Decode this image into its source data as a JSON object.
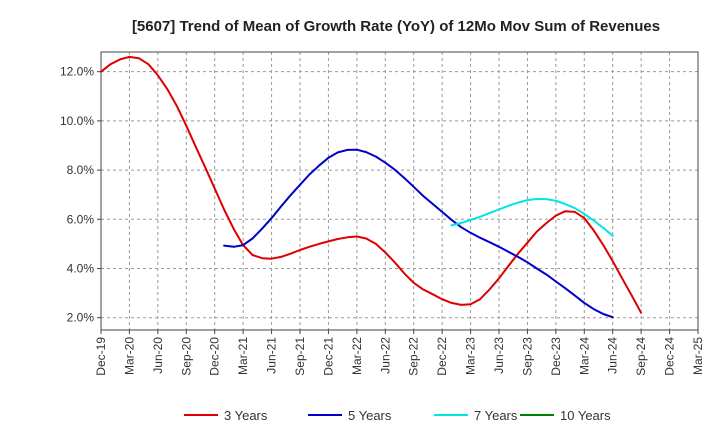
{
  "chart_data": {
    "type": "line",
    "title": "[5607]  Trend of Mean of Growth Rate (YoY) of 12Mo Mov Sum of Revenues",
    "xlabel": "",
    "ylabel": "",
    "x_tick_labels": [
      "Dec-19",
      "Mar-20",
      "Jun-20",
      "Sep-20",
      "Dec-20",
      "Mar-21",
      "Jun-21",
      "Sep-21",
      "Dec-21",
      "Mar-22",
      "Jun-22",
      "Sep-22",
      "Dec-22",
      "Mar-23",
      "Jun-23",
      "Sep-23",
      "Dec-23",
      "Mar-24",
      "Jun-24",
      "Sep-24",
      "Dec-24",
      "Mar-25"
    ],
    "y_tick_labels": [
      "2.0%",
      "4.0%",
      "6.0%",
      "8.0%",
      "10.0%",
      "12.0%"
    ],
    "y_ticks": [
      2,
      4,
      6,
      8,
      10,
      12
    ],
    "ylim": [
      1.5,
      12.8
    ],
    "x_count": 22,
    "grid": true,
    "legend_position": "bottom",
    "series": [
      {
        "name": "3 Years",
        "color": "#dd0000",
        "points": [
          [
            0,
            12.0
          ],
          [
            0.33,
            12.3
          ],
          [
            0.67,
            12.5
          ],
          [
            1,
            12.6
          ],
          [
            1.33,
            12.55
          ],
          [
            1.67,
            12.3
          ],
          [
            2,
            11.85
          ],
          [
            2.33,
            11.3
          ],
          [
            2.67,
            10.6
          ],
          [
            3,
            9.8
          ],
          [
            3.33,
            8.95
          ],
          [
            3.67,
            8.1
          ],
          [
            4,
            7.25
          ],
          [
            4.33,
            6.4
          ],
          [
            4.67,
            5.6
          ],
          [
            5,
            4.95
          ],
          [
            5.33,
            4.55
          ],
          [
            5.67,
            4.42
          ],
          [
            6,
            4.4
          ],
          [
            6.33,
            4.47
          ],
          [
            6.67,
            4.6
          ],
          [
            7,
            4.75
          ],
          [
            7.33,
            4.88
          ],
          [
            7.67,
            5.0
          ],
          [
            8,
            5.1
          ],
          [
            8.33,
            5.2
          ],
          [
            8.67,
            5.27
          ],
          [
            9,
            5.3
          ],
          [
            9.33,
            5.22
          ],
          [
            9.67,
            5.0
          ],
          [
            10,
            4.65
          ],
          [
            10.33,
            4.25
          ],
          [
            10.67,
            3.8
          ],
          [
            11,
            3.42
          ],
          [
            11.33,
            3.15
          ],
          [
            11.67,
            2.95
          ],
          [
            12,
            2.75
          ],
          [
            12.33,
            2.6
          ],
          [
            12.67,
            2.52
          ],
          [
            13,
            2.55
          ],
          [
            13.33,
            2.75
          ],
          [
            13.67,
            3.15
          ],
          [
            14,
            3.6
          ],
          [
            14.33,
            4.1
          ],
          [
            14.67,
            4.6
          ],
          [
            15,
            5.05
          ],
          [
            15.33,
            5.5
          ],
          [
            15.67,
            5.85
          ],
          [
            16,
            6.15
          ],
          [
            16.33,
            6.33
          ],
          [
            16.67,
            6.3
          ],
          [
            17,
            6.05
          ],
          [
            17.33,
            5.55
          ],
          [
            17.67,
            4.95
          ],
          [
            18,
            4.3
          ],
          [
            18.33,
            3.6
          ],
          [
            18.67,
            2.9
          ],
          [
            19,
            2.2
          ]
        ]
      },
      {
        "name": "5 Years",
        "color": "#0000cc",
        "points": [
          [
            4.33,
            4.93
          ],
          [
            4.67,
            4.88
          ],
          [
            5,
            4.95
          ],
          [
            5.33,
            5.22
          ],
          [
            5.67,
            5.62
          ],
          [
            6,
            6.05
          ],
          [
            6.33,
            6.52
          ],
          [
            6.67,
            6.98
          ],
          [
            7,
            7.4
          ],
          [
            7.33,
            7.82
          ],
          [
            7.67,
            8.18
          ],
          [
            8,
            8.5
          ],
          [
            8.33,
            8.72
          ],
          [
            8.67,
            8.82
          ],
          [
            9,
            8.83
          ],
          [
            9.33,
            8.73
          ],
          [
            9.67,
            8.55
          ],
          [
            10,
            8.3
          ],
          [
            10.33,
            8.02
          ],
          [
            10.67,
            7.68
          ],
          [
            11,
            7.32
          ],
          [
            11.33,
            6.95
          ],
          [
            11.67,
            6.62
          ],
          [
            12,
            6.3
          ],
          [
            12.33,
            5.98
          ],
          [
            12.67,
            5.68
          ],
          [
            13,
            5.45
          ],
          [
            13.33,
            5.25
          ],
          [
            13.67,
            5.07
          ],
          [
            14,
            4.88
          ],
          [
            14.33,
            4.68
          ],
          [
            14.67,
            4.47
          ],
          [
            15,
            4.25
          ],
          [
            15.33,
            4.0
          ],
          [
            15.67,
            3.75
          ],
          [
            16,
            3.47
          ],
          [
            16.33,
            3.2
          ],
          [
            16.67,
            2.9
          ],
          [
            17,
            2.6
          ],
          [
            17.33,
            2.35
          ],
          [
            17.67,
            2.15
          ],
          [
            18,
            2.02
          ]
        ]
      },
      {
        "name": "7 Years",
        "color": "#00e5e5",
        "points": [
          [
            12.33,
            5.75
          ],
          [
            12.67,
            5.85
          ],
          [
            13,
            5.97
          ],
          [
            13.33,
            6.1
          ],
          [
            13.67,
            6.25
          ],
          [
            14,
            6.4
          ],
          [
            14.33,
            6.55
          ],
          [
            14.67,
            6.68
          ],
          [
            15,
            6.78
          ],
          [
            15.33,
            6.83
          ],
          [
            15.67,
            6.82
          ],
          [
            16,
            6.75
          ],
          [
            16.33,
            6.62
          ],
          [
            16.67,
            6.45
          ],
          [
            17,
            6.22
          ],
          [
            17.33,
            5.95
          ],
          [
            17.67,
            5.65
          ],
          [
            18,
            5.33
          ]
        ]
      },
      {
        "name": "10 Years",
        "color": "#008000",
        "points": []
      }
    ]
  }
}
